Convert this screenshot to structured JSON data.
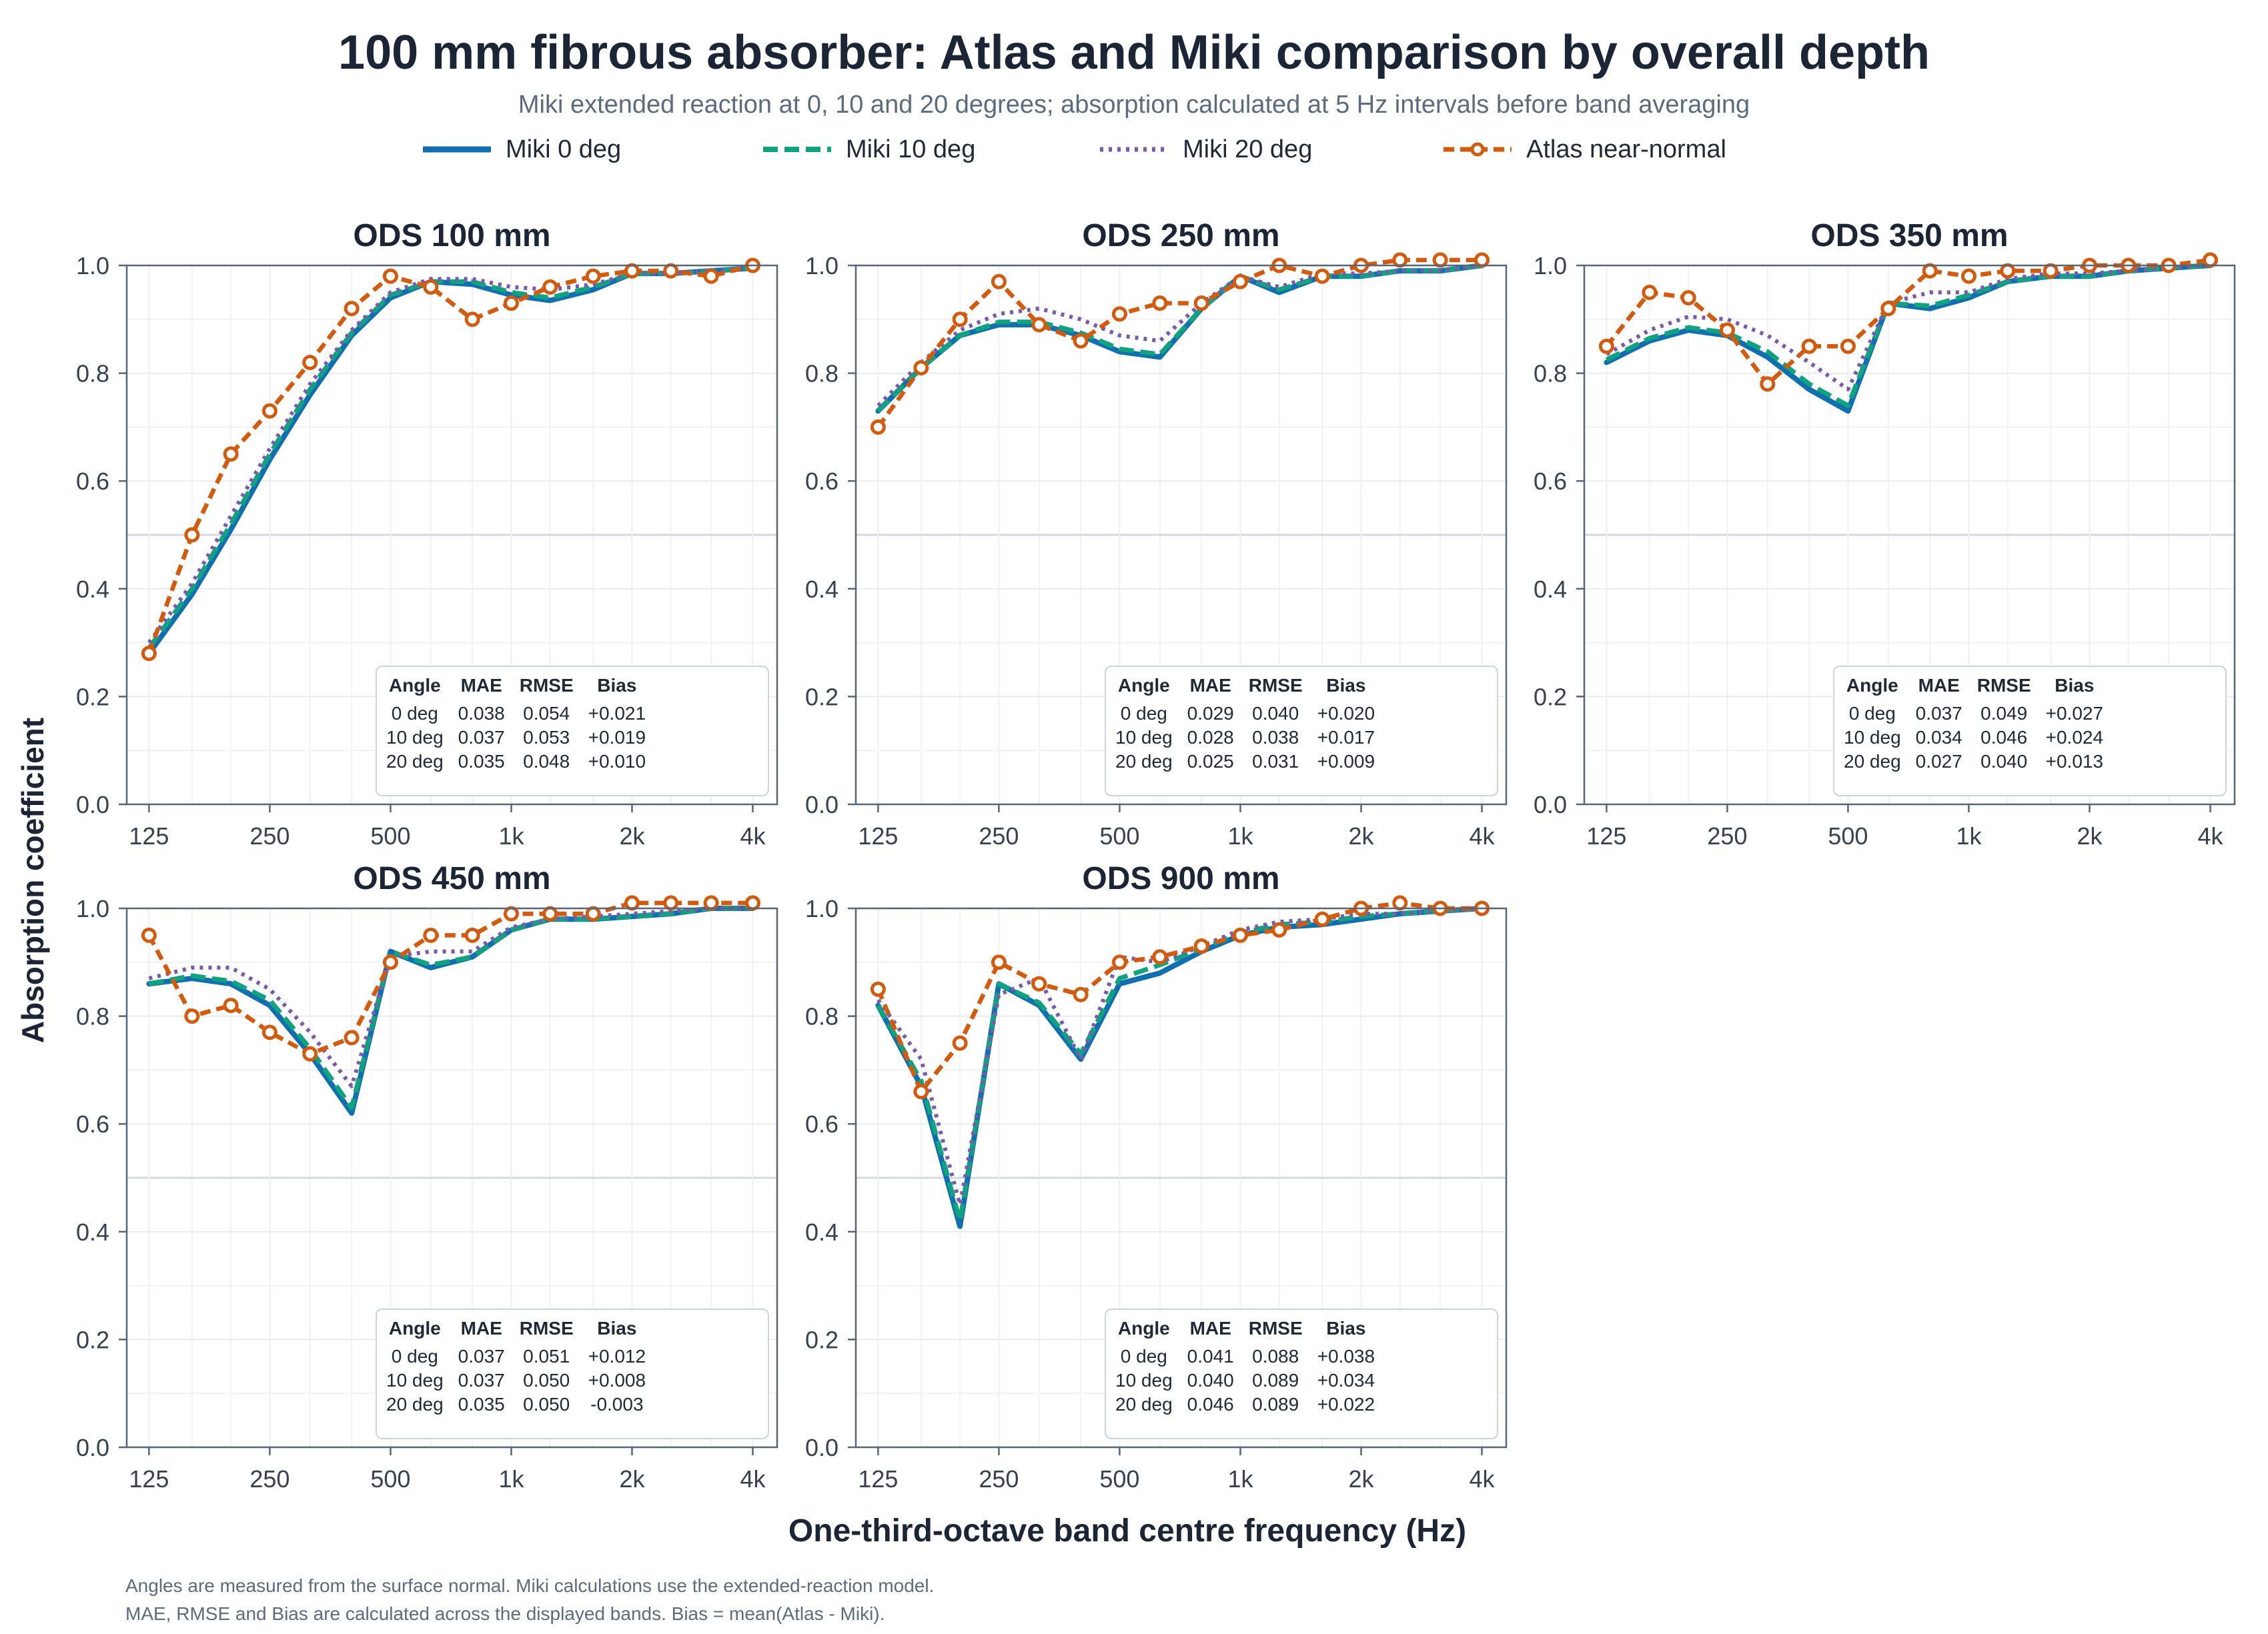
{
  "title": "100 mm fibrous absorber: Atlas and Miki comparison by overall depth",
  "subtitle": "Miki extended reaction at 0, 10 and 20 degrees; absorption calculated at 5 Hz intervals before band averaging",
  "legend": [
    {
      "label": "Miki 0 deg",
      "color": "#0f6fb0",
      "style": "solid"
    },
    {
      "label": "Miki 10 deg",
      "color": "#10a37f",
      "style": "dashed"
    },
    {
      "label": "Miki 20 deg",
      "color": "#7a5ab0",
      "style": "dotted"
    },
    {
      "label": "Atlas near-normal",
      "color": "#d45a0e",
      "style": "dashed-marker"
    }
  ],
  "y_axis_title": "Absorption coefficient",
  "x_axis_title": "One-third-octave band centre frequency (Hz)",
  "footnotes": [
    "Angles are measured from the surface normal. Miki calculations use the extended-reaction model.",
    "MAE, RMSE and Bias are calculated across the displayed bands. Bias = mean(Atlas - Miki)."
  ],
  "stats_headers": [
    "Angle",
    "MAE",
    "RMSE",
    "Bias"
  ],
  "chart_data": [
    {
      "type": "line",
      "title": "ODS 100 mm",
      "x": [
        125,
        160,
        200,
        250,
        315,
        400,
        500,
        630,
        800,
        1000,
        1250,
        1600,
        2000,
        2500,
        3150,
        4000
      ],
      "x_scale": "log",
      "xticks": [
        "125",
        "250",
        "500",
        "1k",
        "2k",
        "4k"
      ],
      "ylim": [
        0,
        1
      ],
      "yticks": [
        "0.0",
        "0.2",
        "0.4",
        "0.6",
        "0.8",
        "1.0"
      ],
      "series": [
        {
          "name": "Miki 0 deg",
          "values": [
            0.28,
            0.39,
            0.51,
            0.64,
            0.76,
            0.87,
            0.94,
            0.97,
            0.965,
            0.945,
            0.935,
            0.955,
            0.985,
            0.985,
            0.99,
            0.995
          ]
        },
        {
          "name": "Miki 10 deg",
          "values": [
            0.29,
            0.4,
            0.52,
            0.65,
            0.77,
            0.875,
            0.945,
            0.97,
            0.97,
            0.95,
            0.94,
            0.96,
            0.985,
            0.985,
            0.99,
            0.995
          ]
        },
        {
          "name": "Miki 20 deg",
          "values": [
            0.3,
            0.41,
            0.535,
            0.66,
            0.78,
            0.88,
            0.95,
            0.975,
            0.975,
            0.96,
            0.955,
            0.965,
            0.985,
            0.985,
            0.99,
            0.995
          ]
        },
        {
          "name": "Atlas near-normal",
          "values": [
            0.28,
            0.5,
            0.65,
            0.73,
            0.82,
            0.92,
            0.98,
            0.96,
            0.9,
            0.93,
            0.96,
            0.98,
            0.99,
            0.99,
            0.98,
            1.0
          ]
        }
      ],
      "stats": [
        [
          "0 deg",
          "0.038",
          "0.054",
          "+0.021"
        ],
        [
          "10 deg",
          "0.037",
          "0.053",
          "+0.019"
        ],
        [
          "20 deg",
          "0.035",
          "0.048",
          "+0.010"
        ]
      ]
    },
    {
      "type": "line",
      "title": "ODS 250 mm",
      "x": [
        125,
        160,
        200,
        250,
        315,
        400,
        500,
        630,
        800,
        1000,
        1250,
        1600,
        2000,
        2500,
        3150,
        4000
      ],
      "x_scale": "log",
      "xticks": [
        "125",
        "250",
        "500",
        "1k",
        "2k",
        "4k"
      ],
      "ylim": [
        0,
        1
      ],
      "yticks": [
        "0.0",
        "0.2",
        "0.4",
        "0.6",
        "0.8",
        "1.0"
      ],
      "series": [
        {
          "name": "Miki 0 deg",
          "values": [
            0.73,
            0.81,
            0.87,
            0.89,
            0.89,
            0.87,
            0.84,
            0.83,
            0.92,
            0.98,
            0.95,
            0.98,
            0.98,
            0.99,
            0.99,
            1.0
          ]
        },
        {
          "name": "Miki 10 deg",
          "values": [
            0.73,
            0.81,
            0.87,
            0.895,
            0.895,
            0.875,
            0.845,
            0.835,
            0.92,
            0.98,
            0.955,
            0.98,
            0.98,
            0.99,
            0.99,
            1.0
          ]
        },
        {
          "name": "Miki 20 deg",
          "values": [
            0.74,
            0.82,
            0.88,
            0.91,
            0.92,
            0.9,
            0.87,
            0.86,
            0.93,
            0.98,
            0.96,
            0.985,
            0.985,
            0.99,
            0.99,
            1.0
          ]
        },
        {
          "name": "Atlas near-normal",
          "values": [
            0.7,
            0.81,
            0.9,
            0.97,
            0.89,
            0.86,
            0.91,
            0.93,
            0.93,
            0.97,
            1.0,
            0.98,
            1.0,
            1.01,
            1.01,
            1.01
          ]
        }
      ],
      "stats": [
        [
          "0 deg",
          "0.029",
          "0.040",
          "+0.020"
        ],
        [
          "10 deg",
          "0.028",
          "0.038",
          "+0.017"
        ],
        [
          "20 deg",
          "0.025",
          "0.031",
          "+0.009"
        ]
      ]
    },
    {
      "type": "line",
      "title": "ODS 350 mm",
      "x": [
        125,
        160,
        200,
        250,
        315,
        400,
        500,
        630,
        800,
        1000,
        1250,
        1600,
        2000,
        2500,
        3150,
        4000
      ],
      "x_scale": "log",
      "xticks": [
        "125",
        "250",
        "500",
        "1k",
        "2k",
        "4k"
      ],
      "ylim": [
        0,
        1
      ],
      "yticks": [
        "0.0",
        "0.2",
        "0.4",
        "0.6",
        "0.8",
        "1.0"
      ],
      "series": [
        {
          "name": "Miki 0 deg",
          "values": [
            0.82,
            0.86,
            0.88,
            0.87,
            0.83,
            0.77,
            0.73,
            0.93,
            0.92,
            0.94,
            0.97,
            0.98,
            0.98,
            0.99,
            0.995,
            1.0
          ]
        },
        {
          "name": "Miki 10 deg",
          "values": [
            0.825,
            0.865,
            0.885,
            0.875,
            0.84,
            0.78,
            0.74,
            0.93,
            0.925,
            0.945,
            0.97,
            0.98,
            0.98,
            0.99,
            0.995,
            1.0
          ]
        },
        {
          "name": "Miki 20 deg",
          "values": [
            0.835,
            0.88,
            0.905,
            0.9,
            0.87,
            0.82,
            0.77,
            0.93,
            0.95,
            0.95,
            0.975,
            0.985,
            0.985,
            0.99,
            0.995,
            1.0
          ]
        },
        {
          "name": "Atlas near-normal",
          "values": [
            0.85,
            0.95,
            0.94,
            0.88,
            0.78,
            0.85,
            0.85,
            0.92,
            0.99,
            0.98,
            0.99,
            0.99,
            1.0,
            1.0,
            1.0,
            1.01
          ]
        }
      ],
      "stats": [
        [
          "0 deg",
          "0.037",
          "0.049",
          "+0.027"
        ],
        [
          "10 deg",
          "0.034",
          "0.046",
          "+0.024"
        ],
        [
          "20 deg",
          "0.027",
          "0.040",
          "+0.013"
        ]
      ]
    },
    {
      "type": "line",
      "title": "ODS 450 mm",
      "x": [
        125,
        160,
        200,
        250,
        315,
        400,
        500,
        630,
        800,
        1000,
        1250,
        1600,
        2000,
        2500,
        3150,
        4000
      ],
      "x_scale": "log",
      "xticks": [
        "125",
        "250",
        "500",
        "1k",
        "2k",
        "4k"
      ],
      "ylim": [
        0,
        1
      ],
      "yticks": [
        "0.0",
        "0.2",
        "0.4",
        "0.6",
        "0.8",
        "1.0"
      ],
      "series": [
        {
          "name": "Miki 0 deg",
          "values": [
            0.86,
            0.87,
            0.86,
            0.82,
            0.73,
            0.62,
            0.92,
            0.89,
            0.91,
            0.96,
            0.98,
            0.98,
            0.985,
            0.99,
            1.0,
            1.0
          ]
        },
        {
          "name": "Miki 10 deg",
          "values": [
            0.86,
            0.875,
            0.865,
            0.83,
            0.74,
            0.63,
            0.92,
            0.895,
            0.91,
            0.96,
            0.98,
            0.98,
            0.985,
            0.99,
            1.0,
            1.0
          ]
        },
        {
          "name": "Miki 20 deg",
          "values": [
            0.87,
            0.89,
            0.89,
            0.85,
            0.77,
            0.67,
            0.91,
            0.92,
            0.92,
            0.965,
            0.98,
            0.985,
            0.99,
            0.995,
            1.0,
            1.0
          ]
        },
        {
          "name": "Atlas near-normal",
          "values": [
            0.95,
            0.8,
            0.82,
            0.77,
            0.73,
            0.76,
            0.9,
            0.95,
            0.95,
            0.99,
            0.99,
            0.99,
            1.01,
            1.01,
            1.01,
            1.01
          ]
        }
      ],
      "stats": [
        [
          "0 deg",
          "0.037",
          "0.051",
          "+0.012"
        ],
        [
          "10 deg",
          "0.037",
          "0.050",
          "+0.008"
        ],
        [
          "20 deg",
          "0.035",
          "0.050",
          "-0.003"
        ]
      ]
    },
    {
      "type": "line",
      "title": "ODS 900 mm",
      "x": [
        125,
        160,
        200,
        250,
        315,
        400,
        500,
        630,
        800,
        1000,
        1250,
        1600,
        2000,
        2500,
        3150,
        4000
      ],
      "x_scale": "log",
      "xticks": [
        "125",
        "250",
        "500",
        "1k",
        "2k",
        "4k"
      ],
      "ylim": [
        0,
        1
      ],
      "yticks": [
        "0.0",
        "0.2",
        "0.4",
        "0.6",
        "0.8",
        "1.0"
      ],
      "series": [
        {
          "name": "Miki 0 deg",
          "values": [
            0.82,
            0.67,
            0.41,
            0.86,
            0.82,
            0.72,
            0.86,
            0.88,
            0.92,
            0.95,
            0.965,
            0.97,
            0.98,
            0.99,
            0.995,
            1.0
          ]
        },
        {
          "name": "Miki 10 deg",
          "values": [
            0.82,
            0.68,
            0.42,
            0.86,
            0.825,
            0.73,
            0.87,
            0.895,
            0.925,
            0.955,
            0.97,
            0.975,
            0.985,
            0.99,
            0.995,
            1.0
          ]
        },
        {
          "name": "Miki 20 deg",
          "values": [
            0.83,
            0.72,
            0.45,
            0.84,
            0.87,
            0.72,
            0.91,
            0.9,
            0.93,
            0.96,
            0.975,
            0.98,
            0.99,
            0.99,
            0.995,
            1.0
          ]
        },
        {
          "name": "Atlas near-normal",
          "values": [
            0.85,
            0.66,
            0.75,
            0.9,
            0.86,
            0.84,
            0.9,
            0.91,
            0.93,
            0.95,
            0.96,
            0.98,
            1.0,
            1.01,
            1.0,
            1.0
          ]
        }
      ],
      "stats": [
        [
          "0 deg",
          "0.041",
          "0.088",
          "+0.038"
        ],
        [
          "10 deg",
          "0.040",
          "0.089",
          "+0.034"
        ],
        [
          "20 deg",
          "0.046",
          "0.089",
          "+0.022"
        ]
      ]
    }
  ]
}
